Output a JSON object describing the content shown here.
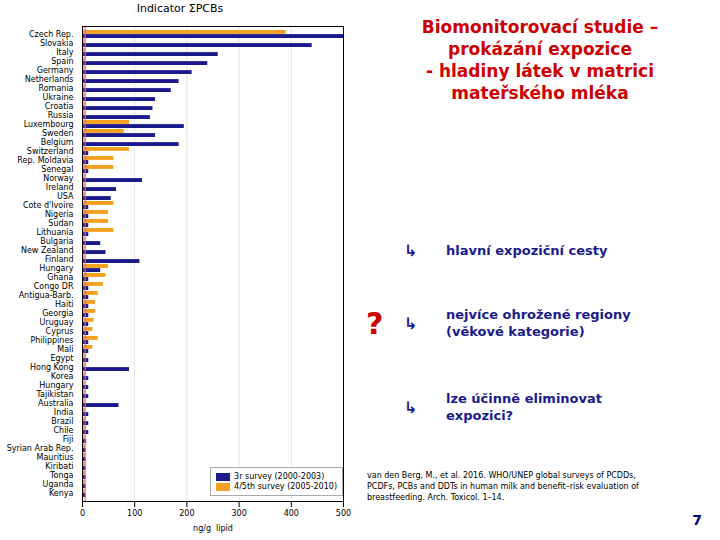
{
  "chart_data": {
    "type": "bar",
    "orientation": "horizontal",
    "title": "Indicator ΣPCBs",
    "x_label": "ng/g  lipid",
    "categories": [
      "Czech Rep.",
      "Slovakia",
      "Italy",
      "Spain",
      "Germany",
      "Netherlands",
      "Romania",
      "Ukraine",
      "Croatia",
      "Russia",
      "Luxembourg",
      "Sweden",
      "Belgium",
      "Switzerland",
      "Rep. Moldavia",
      "Senegal",
      "Norway",
      "Ireland",
      "USA",
      "Cote d'Ivoire",
      "Nigeria",
      "Sudan",
      "Lithuania",
      "Bulgaria",
      "New Zealand",
      "Finland",
      "Hungary",
      "Ghana",
      "Congo DR",
      "Antigua-Barb.",
      "Haiti",
      "Georgia",
      "Uruguay",
      "Cyprus",
      "Philippines",
      "Mali",
      "Egypt",
      "Hong Kong",
      "Korea",
      "Hungary",
      "Tajikistan",
      "Australia",
      "India",
      "Brazil",
      "Chile",
      "Fiji",
      "Syrian Arab Rep.",
      "Mauritius",
      "Kiribati",
      "Tonga",
      "Uganda",
      "Kenya"
    ],
    "series": [
      {
        "name": "3r survey (2000-2003)",
        "color": "#1a1a8c",
        "values": [
          500,
          440,
          260,
          240,
          210,
          185,
          170,
          140,
          135,
          130,
          195,
          140,
          185,
          12,
          12,
          12,
          115,
          65,
          55,
          12,
          12,
          12,
          12,
          35,
          45,
          110,
          35,
          12,
          12,
          12,
          12,
          12,
          12,
          12,
          12,
          12,
          12,
          90,
          12,
          12,
          12,
          70,
          12,
          12,
          12,
          8,
          7,
          7,
          7,
          7,
          7,
          7
        ]
      },
      {
        "name": "4/5th survey (2005-2010)",
        "color": "#f5a020",
        "values": [
          390,
          5,
          5,
          5,
          5,
          5,
          5,
          5,
          5,
          5,
          90,
          80,
          5,
          90,
          60,
          60,
          5,
          5,
          5,
          60,
          50,
          50,
          60,
          5,
          5,
          5,
          50,
          45,
          40,
          30,
          25,
          25,
          22,
          20,
          30,
          20,
          5,
          5,
          5,
          5,
          5,
          5,
          5,
          5,
          5,
          5,
          5,
          5,
          5,
          5,
          5,
          5
        ]
      }
    ],
    "xlim": [
      0,
      500
    ],
    "xticks": [
      0,
      100,
      200,
      300,
      400,
      500
    ],
    "grid": true,
    "legend": "lower right",
    "vline": {
      "value": 5,
      "color": "#e060a0"
    },
    "annotations": [
      {
        "text": "Biomonitorovací studie –\nprokázání expozice\n- hladiny látek v matrici\nmateřského mléka",
        "color": "#cc0000"
      },
      {
        "text": "↳",
        "color": "#1a1a8c"
      },
      {
        "text": "hlavní expoziční cesty",
        "color": "#1a1a8c"
      },
      {
        "text": "?",
        "color": "#cc0000"
      },
      {
        "text": "↳",
        "color": "#1a1a8c"
      },
      {
        "text": "nejvíce ohrožené regiony\n(věkové kategorie)",
        "color": "#1a1a8c"
      },
      {
        "text": "↳",
        "color": "#1a1a8c"
      },
      {
        "text": "lze účinně eliminovat\nexpozici?",
        "color": "#1a1a8c"
      },
      {
        "text": "van den Berg, M., et al. 2016. WHO/UNEP global surveys of PCDDs,\nPCDFs, PCBs and DDTs in human milk and benefit–risk evaluation of\nbreastfeeding. Arch. Toxicol. 1–14.",
        "color": "#000000"
      },
      {
        "text": "7",
        "color": "#000080"
      }
    ]
  }
}
